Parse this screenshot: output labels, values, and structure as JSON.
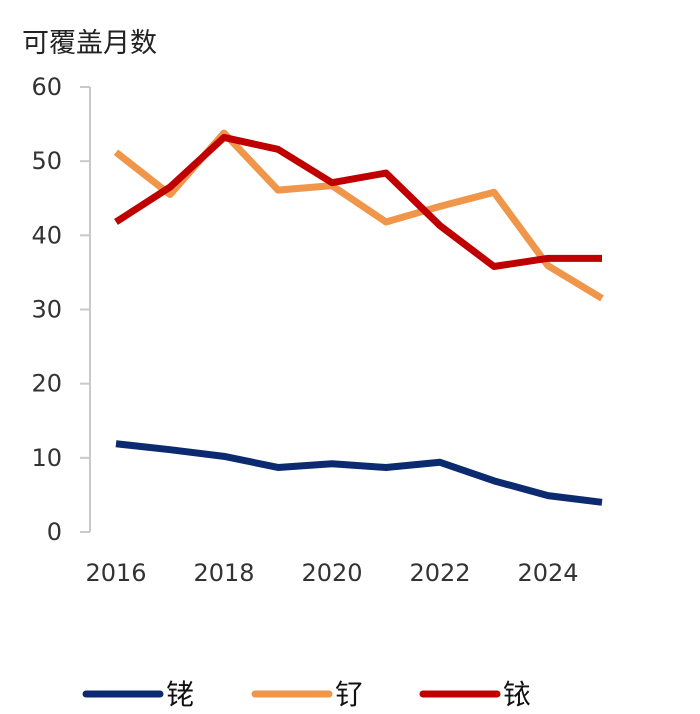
{
  "chart_data": {
    "type": "line",
    "ylabel": "可覆盖月数",
    "x": [
      2016,
      2017,
      2018,
      2019,
      2020,
      2021,
      2022,
      2023,
      2024,
      2025
    ],
    "x_ticks": [
      "2016",
      "2018",
      "2020",
      "2022",
      "2024"
    ],
    "y_ticks": [
      "0",
      "10",
      "20",
      "30",
      "40",
      "50",
      "60"
    ],
    "ylim": [
      0,
      60
    ],
    "grid": false,
    "legend_position": "bottom",
    "series": [
      {
        "name": "铑",
        "color": "#0b2a6f",
        "values": [
          11.9,
          11.1,
          10.2,
          8.7,
          9.2,
          8.7,
          9.4,
          6.9,
          4.9,
          4.0
        ]
      },
      {
        "name": "钌",
        "color": "#f0964a",
        "values": [
          51.2,
          45.5,
          53.8,
          46.1,
          46.7,
          41.8,
          43.9,
          45.8,
          35.9,
          31.5
        ]
      },
      {
        "name": "铱",
        "color": "#c00000",
        "values": [
          41.8,
          46.5,
          53.2,
          51.6,
          47.1,
          48.4,
          41.3,
          35.8,
          36.9,
          36.9
        ]
      }
    ]
  }
}
